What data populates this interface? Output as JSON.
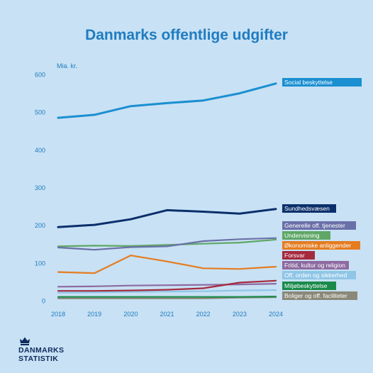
{
  "chart_data": {
    "type": "line",
    "title": "Danmarks offentlige udgifter",
    "ylabel": "Mia. kr.",
    "xlabel": "",
    "x": [
      2018,
      2019,
      2020,
      2021,
      2022,
      2023,
      2024
    ],
    "ylim": [
      0,
      600
    ],
    "yticks": [
      0,
      100,
      200,
      300,
      400,
      500,
      600
    ],
    "grid": false,
    "legend": "right, at line ends",
    "series": [
      {
        "name": "Social beskyttelse",
        "color": "#1a8fd1",
        "width": 3,
        "values": [
          485,
          493,
          516,
          524,
          531,
          550,
          576
        ]
      },
      {
        "name": "Sundhedsvæsen",
        "color": "#0b2f6b",
        "width": 3,
        "values": [
          195,
          201,
          216,
          240,
          236,
          231,
          243
        ]
      },
      {
        "name": "Generelle off. tjenester",
        "color": "#6a70a8",
        "width": 2.2,
        "values": [
          141,
          135,
          142,
          144,
          158,
          163,
          166
        ]
      },
      {
        "name": "Undervisning",
        "color": "#5fa766",
        "width": 2.2,
        "values": [
          144,
          146,
          145,
          148,
          151,
          154,
          162
        ]
      },
      {
        "name": "Økonomiske anliggender",
        "color": "#e57c20",
        "width": 2.2,
        "values": [
          76,
          73,
          120,
          104,
          86,
          84,
          90
        ]
      },
      {
        "name": "Forsvar",
        "color": "#a52a3e",
        "width": 2.2,
        "values": [
          26,
          26,
          27,
          29,
          33,
          48,
          53
        ]
      },
      {
        "name": "Fritid, kultur og religion",
        "color": "#8d6aa0",
        "width": 2.2,
        "values": [
          37,
          38,
          40,
          41,
          42,
          43,
          45
        ]
      },
      {
        "name": "Off. orden og sikkerhed",
        "color": "#8fc6e6",
        "width": 2.2,
        "values": [
          21,
          22,
          23,
          24,
          25,
          27,
          28
        ]
      },
      {
        "name": "Miljøbeskyttelse",
        "color": "#1a8a4a",
        "width": 2.2,
        "values": [
          10,
          10,
          10,
          10,
          10,
          10,
          11
        ]
      },
      {
        "name": "Boliger og off. faciliteter",
        "color": "#8a8878",
        "width": 2.2,
        "values": [
          6,
          6,
          6,
          6,
          6,
          8,
          9
        ]
      }
    ]
  },
  "logo": {
    "line1": "DANMARKS",
    "line2": "STATISTIK",
    "icon": "crown-icon",
    "color": "#0d2a5c"
  },
  "colors": {
    "background": "#c8e1f4",
    "title": "#1f7cc1",
    "axis_text": "#1f7cc1"
  }
}
